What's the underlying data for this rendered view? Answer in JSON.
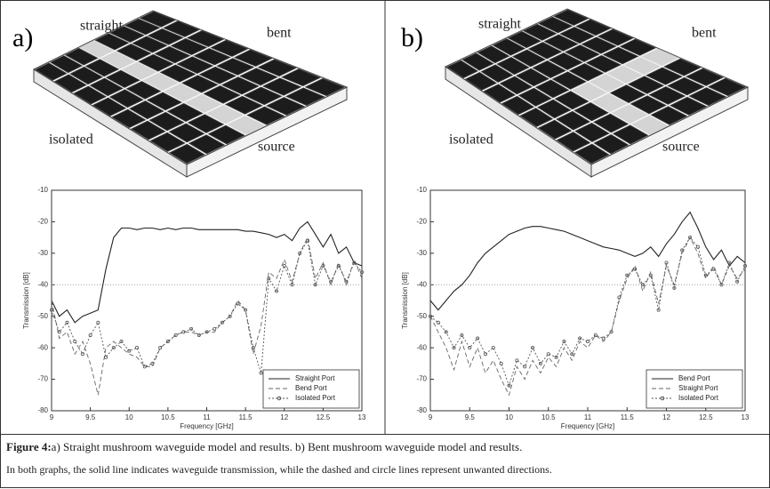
{
  "figure": {
    "panels": [
      {
        "label": "a)",
        "annotations": [
          "straight",
          "bent",
          "isolated",
          "source"
        ]
      },
      {
        "label": "b)",
        "annotations": [
          "straight",
          "bent",
          "isolated",
          "source"
        ]
      }
    ],
    "caption": {
      "label": "Figure 4:",
      "text": "a) Straight mushroom waveguide model and results.  b) Bent mushroom waveguide model and results.",
      "note": "In both graphs, the solid line indicates waveguide transmission, while the dashed and circle lines represent unwanted directions."
    }
  },
  "chart_data": [
    {
      "type": "line",
      "x_label": "Frequency [GHz]",
      "y_label": "Transmission [dB]",
      "x": [
        9,
        9.1,
        9.2,
        9.3,
        9.4,
        9.5,
        9.6,
        9.7,
        9.8,
        9.9,
        10,
        10.1,
        10.2,
        10.3,
        10.4,
        10.5,
        10.6,
        10.7,
        10.8,
        10.9,
        11,
        11.1,
        11.2,
        11.3,
        11.4,
        11.5,
        11.6,
        11.7,
        11.8,
        11.9,
        12,
        12.1,
        12.2,
        12.3,
        12.4,
        12.5,
        12.6,
        12.7,
        12.8,
        12.9,
        13
      ],
      "xlim": [
        9,
        13
      ],
      "xticks": [
        9,
        9.5,
        10,
        10.5,
        11,
        11.5,
        12,
        12.5,
        13
      ],
      "ylim": [
        -80,
        -10
      ],
      "yticks": [
        -10,
        -20,
        -30,
        -40,
        -50,
        -60,
        -70,
        -80
      ],
      "reference_line": -40,
      "legend": "lower right",
      "series": [
        {
          "name": "Straight Port",
          "color": "#222222",
          "style": "solid",
          "values": [
            -45,
            -50,
            -48,
            -52,
            -50,
            -49,
            -48,
            -35,
            -25,
            -22,
            -22,
            -22.5,
            -22,
            -22,
            -22.5,
            -22,
            -22.5,
            -22,
            -22,
            -22.5,
            -22.5,
            -22.5,
            -22.5,
            -22.5,
            -22.5,
            -23,
            -23,
            -23.5,
            -24,
            -25,
            -24,
            -26,
            -22,
            -20,
            -24,
            -28,
            -24,
            -30,
            -28,
            -33,
            -34
          ]
        },
        {
          "name": "Bend Port",
          "color": "#666666",
          "style": "dashed",
          "values": [
            -45,
            -57,
            -55,
            -62,
            -58,
            -65,
            -75,
            -60,
            -58,
            -60,
            -62,
            -63,
            -66,
            -66,
            -60,
            -58,
            -56,
            -55,
            -55,
            -56,
            -55,
            -55,
            -52,
            -50,
            -45,
            -48,
            -62,
            -53,
            -36,
            -38,
            -32,
            -39,
            -30,
            -25,
            -38,
            -33,
            -40,
            -33,
            -40,
            -32,
            -38
          ]
        },
        {
          "name": "Isolated Port",
          "color": "#555555",
          "style": "circles",
          "values": [
            -48,
            -55,
            -52,
            -58,
            -62,
            -56,
            -52,
            -63,
            -60,
            -58,
            -61,
            -60,
            -66,
            -65,
            -60,
            -58,
            -56,
            -55,
            -54,
            -56,
            -55,
            -54,
            -52,
            -50,
            -46,
            -48,
            -60,
            -68,
            -38,
            -42,
            -34,
            -40,
            -30,
            -26,
            -40,
            -34,
            -39,
            -34,
            -39,
            -33,
            -36
          ]
        }
      ]
    },
    {
      "type": "line",
      "x_label": "Frequency [GHz]",
      "y_label": "Transmission [dB]",
      "x": [
        9,
        9.1,
        9.2,
        9.3,
        9.4,
        9.5,
        9.6,
        9.7,
        9.8,
        9.9,
        10,
        10.1,
        10.2,
        10.3,
        10.4,
        10.5,
        10.6,
        10.7,
        10.8,
        10.9,
        11,
        11.1,
        11.2,
        11.3,
        11.4,
        11.5,
        11.6,
        11.7,
        11.8,
        11.9,
        12,
        12.1,
        12.2,
        12.3,
        12.4,
        12.5,
        12.6,
        12.7,
        12.8,
        12.9,
        13
      ],
      "xlim": [
        9,
        13
      ],
      "xticks": [
        9,
        9.5,
        10,
        10.5,
        11,
        11.5,
        12,
        12.5,
        13
      ],
      "ylim": [
        -80,
        -10
      ],
      "yticks": [
        -10,
        -20,
        -30,
        -40,
        -50,
        -60,
        -70,
        -80
      ],
      "reference_line": -40,
      "legend": "lower right",
      "series": [
        {
          "name": "Bend Port",
          "color": "#222222",
          "style": "solid",
          "values": [
            -45,
            -48,
            -45,
            -42,
            -40,
            -37,
            -33,
            -30,
            -28,
            -26,
            -24,
            -23,
            -22,
            -21.5,
            -21.5,
            -22,
            -22.5,
            -23,
            -24,
            -25,
            -26,
            -27,
            -28,
            -28.5,
            -29,
            -30,
            -31,
            -30,
            -28,
            -31,
            -27,
            -24,
            -20,
            -17,
            -22,
            -28,
            -32,
            -29,
            -34,
            -31,
            -33
          ]
        },
        {
          "name": "Straight Port",
          "color": "#666666",
          "style": "dashed",
          "values": [
            -50,
            -55,
            -60,
            -67,
            -58,
            -66,
            -60,
            -68,
            -64,
            -70,
            -75,
            -66,
            -70,
            -64,
            -68,
            -63,
            -66,
            -60,
            -64,
            -58,
            -60,
            -56,
            -58,
            -55,
            -45,
            -38,
            -34,
            -42,
            -36,
            -46,
            -34,
            -40,
            -30,
            -25,
            -30,
            -38,
            -34,
            -40,
            -34,
            -38,
            -35
          ]
        },
        {
          "name": "Isolated Port",
          "color": "#555555",
          "style": "circles",
          "values": [
            -50,
            -52,
            -55,
            -60,
            -56,
            -60,
            -57,
            -62,
            -60,
            -65,
            -72,
            -64,
            -66,
            -60,
            -65,
            -62,
            -63,
            -58,
            -62,
            -57,
            -58,
            -56,
            -57,
            -55,
            -44,
            -37,
            -35,
            -40,
            -37,
            -48,
            -33,
            -41,
            -29,
            -25,
            -28,
            -37,
            -35,
            -40,
            -33,
            -39,
            -34
          ]
        }
      ]
    }
  ]
}
